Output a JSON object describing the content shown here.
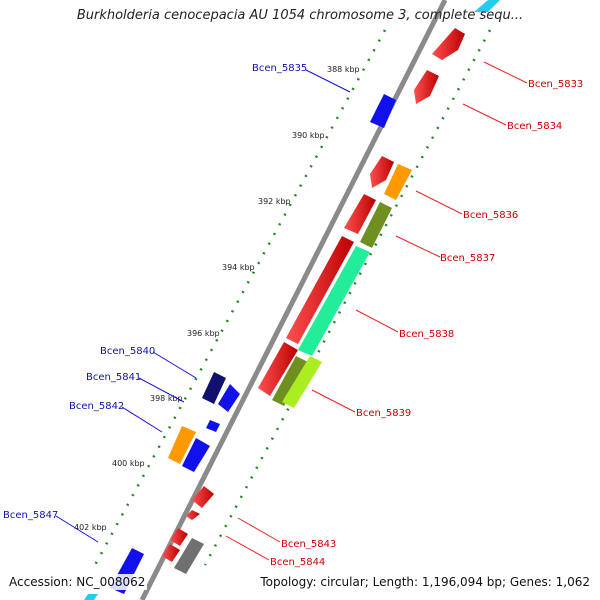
{
  "title": "Burkholderia cenocepacia AU 1054 chromosome 3, complete sequ...",
  "accession": "Accession: NC_008062",
  "topology": "Topology: circular; Length: 1,196,094 bp; Genes: 1,062",
  "kbp_labels": [
    "388 kbp",
    "390 kbp",
    "392 kbp",
    "394 kbp",
    "396 kbp",
    "398 kbp",
    "400 kbp",
    "402 kbp"
  ],
  "genes_left": [
    "Bcen_5835",
    "Bcen_5840",
    "Bcen_5841",
    "Bcen_5842",
    "Bcen_5847"
  ],
  "genes_right": [
    "Bcen_5833",
    "Bcen_5834",
    "Bcen_5836",
    "Bcen_5837",
    "Bcen_5838",
    "Bcen_5839",
    "Bcen_5843",
    "Bcen_5844"
  ],
  "colors": {
    "forward_cds": "#ee1111",
    "reverse_cds": "#1111ee",
    "dark_blue": "#10106e",
    "orange": "#ff9900",
    "olive": "#6f8f20",
    "spring_green": "#22ee99",
    "lime": "#aaee22",
    "gray_gene": "#707070",
    "cyan": "#22ccee",
    "backbone": "#8a8a8a",
    "tick_green": "#228822",
    "label_blue": "#1111aa",
    "label_red": "#cc0000"
  }
}
